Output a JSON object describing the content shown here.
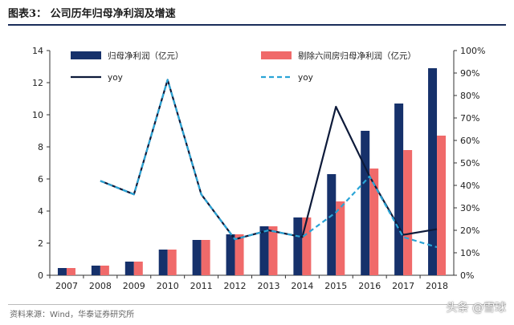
{
  "title": "图表3： 公司历年归母净利润及增速",
  "source": "资料来源：Wind，华泰证券研究所",
  "watermark": "头条 @雪球",
  "colors": {
    "bar1": "#16316b",
    "bar2": "#f06a6a",
    "line1": "#0d1a3a",
    "line2": "#2aa4d6",
    "rule": "#1a2d5a"
  },
  "chart_data": {
    "type": "bar",
    "categories": [
      "2007",
      "2008",
      "2009",
      "2010",
      "2011",
      "2012",
      "2013",
      "2014",
      "2015",
      "2016",
      "2017",
      "2018"
    ],
    "series": [
      {
        "name": "归母净利润（亿元）",
        "type": "bar",
        "axis": "left",
        "values": [
          0.45,
          0.6,
          0.85,
          1.6,
          2.2,
          2.55,
          3.05,
          3.6,
          6.3,
          9.0,
          10.7,
          12.9
        ]
      },
      {
        "name": "剔除六间房归母净利润（亿元）",
        "type": "bar",
        "axis": "left",
        "values": [
          0.45,
          0.6,
          0.85,
          1.6,
          2.2,
          2.55,
          3.05,
          3.6,
          4.6,
          6.65,
          7.8,
          8.7
        ]
      },
      {
        "name": "yoy",
        "type": "line",
        "style": "solid",
        "axis": "right",
        "values": [
          null,
          42,
          36,
          87,
          36,
          16,
          20,
          17,
          75,
          44,
          18,
          20.5
        ]
      },
      {
        "name": "yoy",
        "type": "line",
        "style": "dashed",
        "axis": "right",
        "values": [
          null,
          42,
          36,
          87,
          36,
          16,
          20,
          17,
          28,
          44,
          17,
          12.5
        ]
      }
    ],
    "ylim_left": [
      0,
      14
    ],
    "yticks_left": [
      "0",
      "2",
      "4",
      "6",
      "8",
      "10",
      "12",
      "14"
    ],
    "ylim_right": [
      0,
      100
    ],
    "yticks_right": [
      "0%",
      "10%",
      "20%",
      "30%",
      "40%",
      "50%",
      "60%",
      "70%",
      "80%",
      "90%",
      "100%"
    ],
    "legend": "top",
    "grid": false
  }
}
